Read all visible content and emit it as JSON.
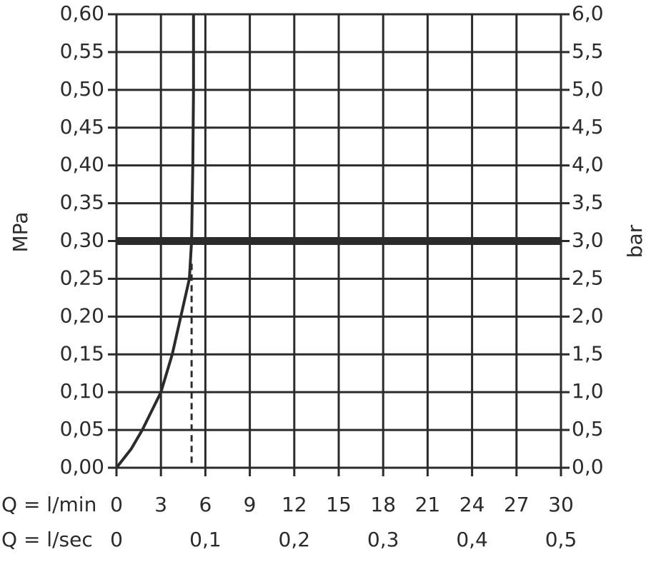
{
  "chart_data": {
    "type": "line",
    "xlabel": "Q = l/min",
    "x2label": "Q = l/sec",
    "ylabel": "MPa",
    "y2label": "bar",
    "xlim": [
      0,
      30
    ],
    "xticks": [
      0,
      3,
      6,
      9,
      12,
      15,
      18,
      21,
      24,
      27,
      30
    ],
    "x2lim": [
      0,
      0.5
    ],
    "x2ticks": [
      {
        "value": 0,
        "label": "0"
      },
      {
        "value": 0.1,
        "label": "0,1"
      },
      {
        "value": 0.2,
        "label": "0,2"
      },
      {
        "value": 0.3,
        "label": "0,3"
      },
      {
        "value": 0.4,
        "label": "0,4"
      },
      {
        "value": 0.5,
        "label": "0,5"
      }
    ],
    "ylim": [
      0,
      0.6
    ],
    "yticks": [
      {
        "value": 0,
        "label": "0,00"
      },
      {
        "value": 0.05,
        "label": "0,05"
      },
      {
        "value": 0.1,
        "label": "0,10"
      },
      {
        "value": 0.15,
        "label": "0,15"
      },
      {
        "value": 0.2,
        "label": "0,20"
      },
      {
        "value": 0.25,
        "label": "0,25"
      },
      {
        "value": 0.3,
        "label": "0,30"
      },
      {
        "value": 0.35,
        "label": "0,35"
      },
      {
        "value": 0.4,
        "label": "0,40"
      },
      {
        "value": 0.45,
        "label": "0,45"
      },
      {
        "value": 0.5,
        "label": "0,50"
      },
      {
        "value": 0.55,
        "label": "0,55"
      },
      {
        "value": 0.6,
        "label": "0,60"
      }
    ],
    "y2lim": [
      0,
      6
    ],
    "y2ticks": [
      {
        "value": 0,
        "label": "0,0"
      },
      {
        "value": 0.5,
        "label": "0,5"
      },
      {
        "value": 1,
        "label": "1,0"
      },
      {
        "value": 1.5,
        "label": "1,5"
      },
      {
        "value": 2,
        "label": "2,0"
      },
      {
        "value": 2.5,
        "label": "2,5"
      },
      {
        "value": 3,
        "label": "3,0"
      },
      {
        "value": 3.5,
        "label": "3,5"
      },
      {
        "value": 4,
        "label": "4,0"
      },
      {
        "value": 4.5,
        "label": "4,5"
      },
      {
        "value": 5,
        "label": "5,0"
      },
      {
        "value": 5.5,
        "label": "5,5"
      },
      {
        "value": 6,
        "label": "6,0"
      }
    ],
    "grid": true,
    "color": "#2b2b2b",
    "x": [
      0,
      1,
      1.74,
      3,
      3.76,
      4.34,
      4.92,
      5.07,
      5.15,
      5.2,
      5.2
    ],
    "values": [
      0,
      0.025,
      0.05,
      0.1,
      0.15,
      0.2,
      0.25,
      0.3,
      0.4,
      0.5,
      0.6
    ],
    "hline": 0.3,
    "dashed_x": 5.07,
    "dashed_top": 0.27
  }
}
